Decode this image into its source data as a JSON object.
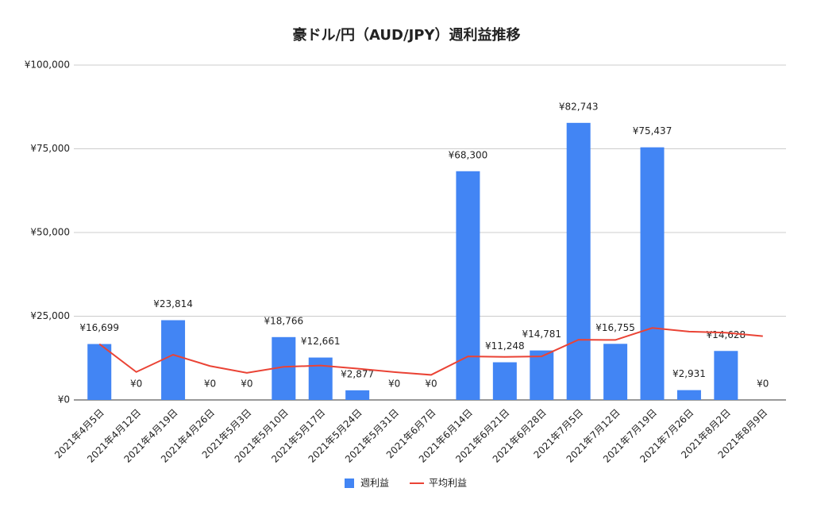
{
  "chart_data": {
    "type": "bar",
    "title": "豪ドル/円（AUD/JPY）週利益推移",
    "categories": [
      "2021年4月5日",
      "2021年4月12日",
      "2021年4月19日",
      "2021年4月26日",
      "2021年5月3日",
      "2021年5月10日",
      "2021年5月17日",
      "2021年5月24日",
      "2021年5月31日",
      "2021年6月7日",
      "2021年6月14日",
      "2021年6月21日",
      "2021年6月28日",
      "2021年7月5日",
      "2021年7月12日",
      "2021年7月19日",
      "2021年7月26日",
      "2021年8月2日",
      "2021年8月9日"
    ],
    "series": [
      {
        "name": "週利益",
        "type": "bar",
        "color": "#4285f4",
        "values": [
          16699,
          0,
          23814,
          0,
          0,
          18766,
          12661,
          2877,
          0,
          0,
          68300,
          11248,
          14781,
          82743,
          16755,
          75437,
          2931,
          14628,
          0
        ],
        "value_labels": [
          "¥16,699",
          "¥0",
          "¥23,814",
          "¥0",
          "¥0",
          "¥18,766",
          "¥12,661",
          "¥2,877",
          "¥0",
          "¥0",
          "¥68,300",
          "¥11,248",
          "¥14,781",
          "¥82,743",
          "¥16,755",
          "¥75,437",
          "¥2,931",
          "¥14,628",
          "¥0"
        ]
      },
      {
        "name": "平均利益",
        "type": "line",
        "color": "#ea4335",
        "values": [
          16699,
          8350,
          13504,
          10128,
          8103,
          9880,
          10277,
          9352,
          8313,
          7482,
          13011,
          12864,
          13011,
          17992,
          17910,
          21505,
          20412,
          20091,
          19034
        ]
      }
    ],
    "ylim": [
      0,
      100000
    ],
    "yticks": [
      {
        "value": 0,
        "label": "¥0"
      },
      {
        "value": 25000,
        "label": "¥25,000"
      },
      {
        "value": 50000,
        "label": "¥50,000"
      },
      {
        "value": 75000,
        "label": "¥75,000"
      },
      {
        "value": 100000,
        "label": "¥100,000"
      }
    ],
    "grid": true
  }
}
